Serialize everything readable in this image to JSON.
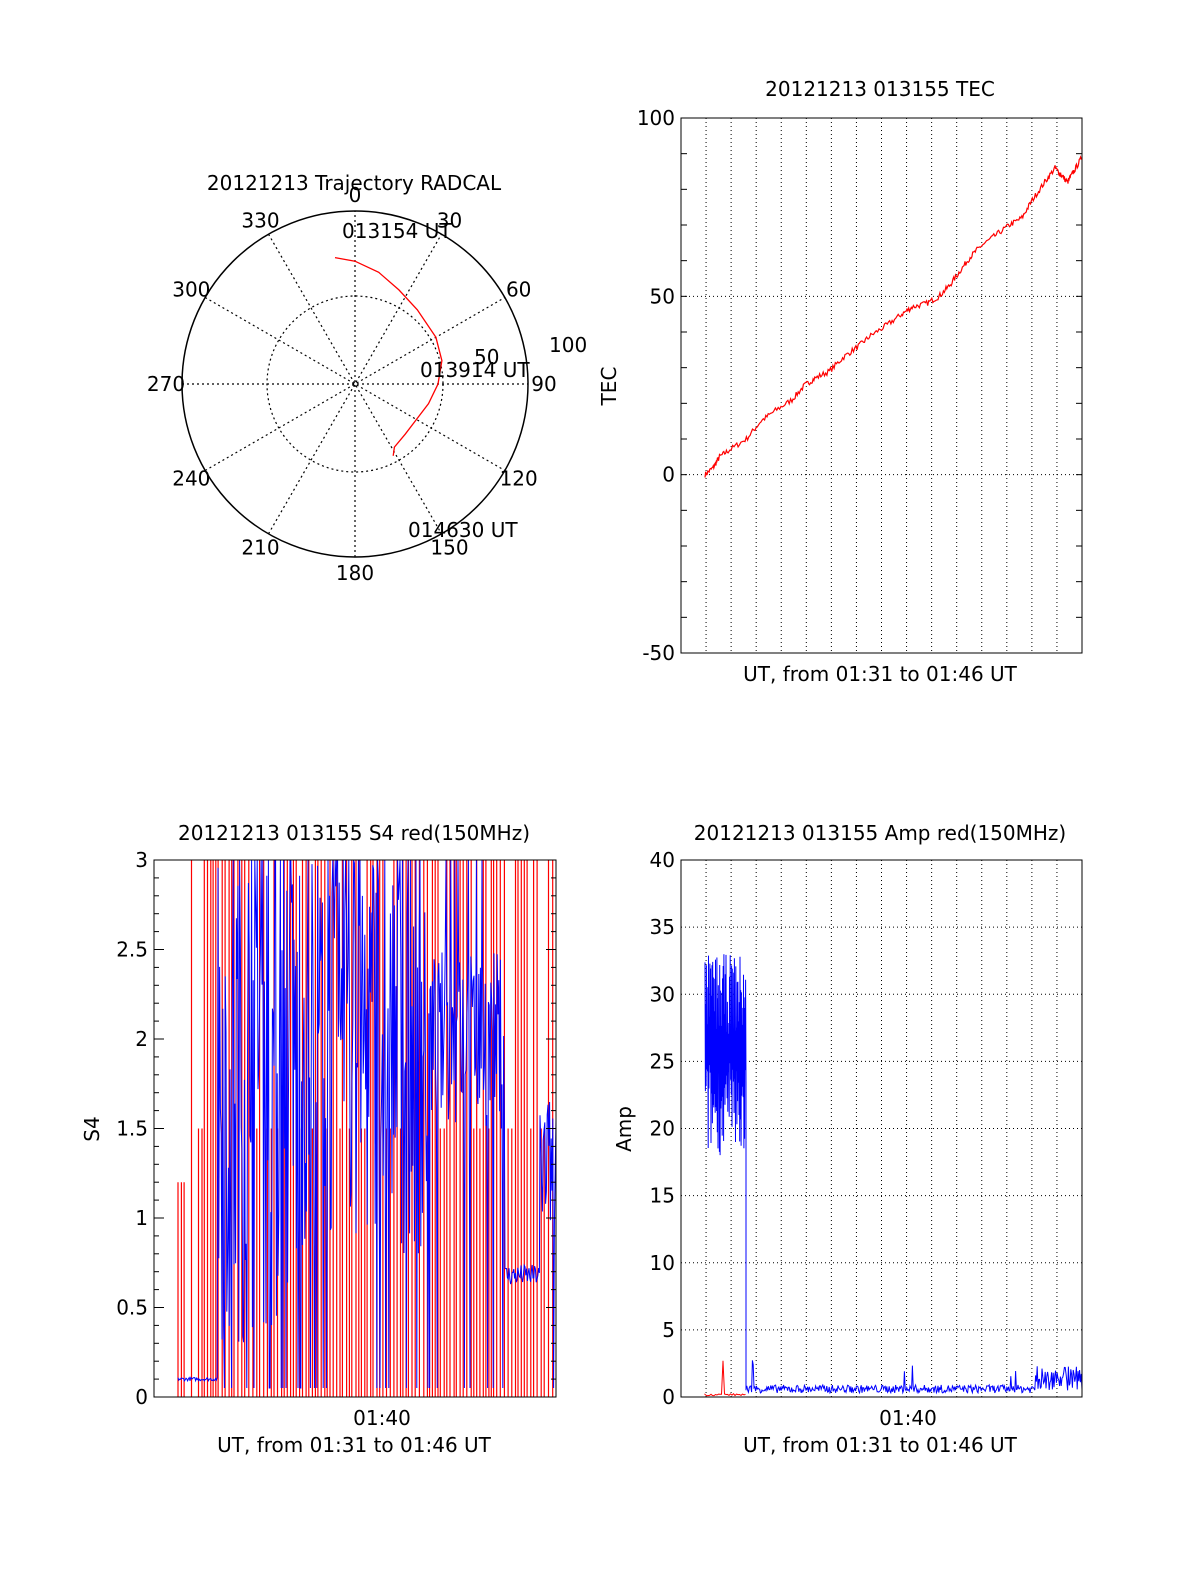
{
  "chart_data": [
    {
      "id": "polar",
      "type": "polar",
      "title": "20121213 Trajectory RADCAL",
      "angle_labels": [
        "0",
        "30",
        "60",
        "90",
        "120",
        "150",
        "180",
        "210",
        "240",
        "270",
        "300",
        "330"
      ],
      "radial_labels": [
        "50",
        "100"
      ],
      "rmax": 100,
      "trajectory": [
        [
          351,
          74
        ],
        [
          0,
          71
        ],
        [
          12,
          66
        ],
        [
          25,
          60
        ],
        [
          40,
          56
        ],
        [
          60,
          54
        ],
        [
          75,
          52
        ],
        [
          90,
          48
        ],
        [
          105,
          44
        ],
        [
          120,
          41
        ],
        [
          135,
          41
        ],
        [
          148,
          43
        ],
        [
          152,
          47
        ]
      ],
      "annotations": [
        "013154 UT",
        "013914 UT",
        "014630 UT"
      ],
      "colors": {
        "trajectory": "#ff0000"
      }
    },
    {
      "id": "tec",
      "type": "line",
      "title": "20121213 013155 TEC",
      "ylabel": "TEC",
      "xlabel": "UT, from 01:31 to 01:46 UT",
      "ylim": [
        -50,
        100
      ],
      "yticks": [
        "100",
        "50",
        "0",
        "-50"
      ],
      "series": [
        {
          "color": "#ff0000",
          "points": [
            [
              0,
              0
            ],
            [
              0.4,
              2
            ],
            [
              0.7,
              5
            ],
            [
              1.2,
              7
            ],
            [
              2.0,
              10
            ],
            [
              2.7,
              15
            ],
            [
              3.4,
              18
            ],
            [
              4.2,
              21
            ],
            [
              4.8,
              25
            ],
            [
              5.3,
              27
            ],
            [
              6.0,
              29
            ],
            [
              6.7,
              33
            ],
            [
              7.4,
              36
            ],
            [
              8.0,
              39
            ],
            [
              8.8,
              42
            ],
            [
              9.5,
              45
            ],
            [
              10.0,
              47
            ],
            [
              10.7,
              48
            ],
            [
              11.3,
              50
            ],
            [
              11.8,
              53
            ],
            [
              12.3,
              57
            ],
            [
              12.8,
              61
            ],
            [
              13.3,
              64
            ],
            [
              14.0,
              67
            ],
            [
              14.7,
              70
            ],
            [
              15.3,
              72
            ],
            [
              15.8,
              77
            ],
            [
              16.4,
              82
            ],
            [
              16.9,
              86
            ],
            [
              17.2,
              84
            ],
            [
              17.5,
              82
            ],
            [
              17.8,
              85
            ],
            [
              18.2,
              89
            ]
          ]
        }
      ]
    },
    {
      "id": "s4",
      "type": "line",
      "title": "20121213 013155 S4 red(150MHz)",
      "ylabel": "S4",
      "xlabel": "UT, from 01:31 to 01:46 UT",
      "ylim": [
        0,
        3
      ],
      "yticks": [
        "3",
        "2.5",
        "2",
        "1.5",
        "1",
        "0.5",
        "0"
      ],
      "xtick_label": "01:40",
      "colors": {
        "red": "#ff0000",
        "blue": "#0000ff"
      }
    },
    {
      "id": "amp",
      "type": "line",
      "title": "20121213 013155 Amp red(150MHz)",
      "ylabel": "Amp",
      "xlabel": "UT, from 01:31 to 01:46 UT",
      "ylim": [
        0,
        40
      ],
      "yticks": [
        "40",
        "35",
        "30",
        "25",
        "20",
        "15",
        "10",
        "5",
        "0"
      ],
      "xtick_label": "01:40",
      "colors": {
        "red": "#ff0000",
        "blue": "#0000ff"
      }
    }
  ]
}
